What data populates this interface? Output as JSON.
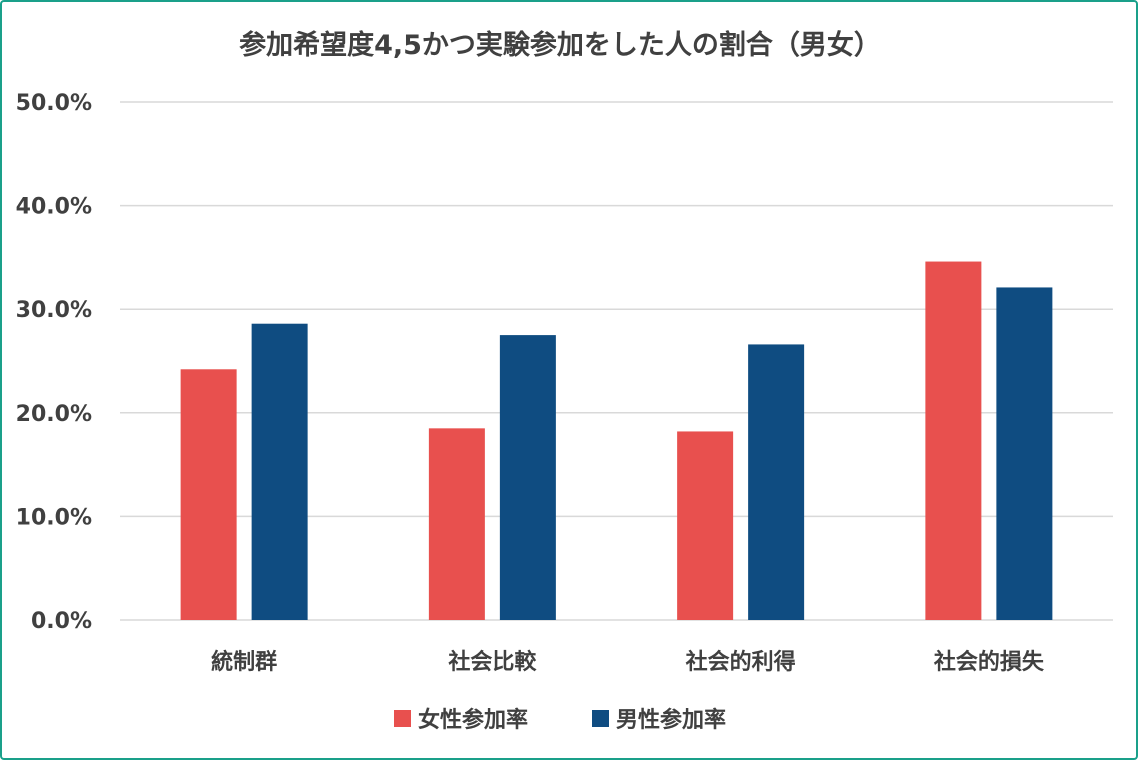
{
  "chart_data": {
    "type": "bar",
    "title": "参加希望度4,5かつ実験参加をした人の割合（男女）",
    "categories": [
      "統制群",
      "社会比較",
      "社会的利得",
      "社会的損失"
    ],
    "series": [
      {
        "name": "女性参加率",
        "color": "#e8504e",
        "values": [
          24.2,
          18.5,
          18.2,
          34.6
        ]
      },
      {
        "name": "男性参加率",
        "color": "#0f4c81",
        "values": [
          28.6,
          27.5,
          26.6,
          32.1
        ]
      }
    ],
    "ylim": [
      0,
      50
    ],
    "yticks": [
      "0.0%",
      "10.0%",
      "20.0%",
      "30.0%",
      "40.0%",
      "50.0%"
    ],
    "grid": true,
    "legend_position": "bottom"
  },
  "colors": {
    "border": "#1aa08a",
    "grid": "#d9d9d9",
    "text": "#404040"
  }
}
